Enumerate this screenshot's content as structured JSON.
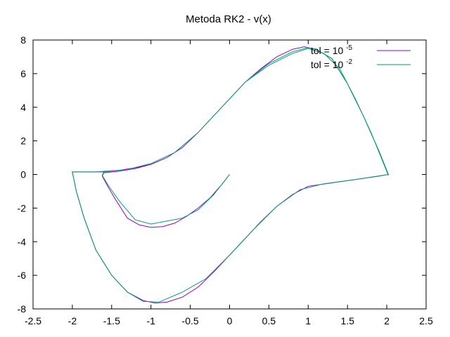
{
  "chart_data": {
    "type": "line",
    "title": "Metoda RK2 - v(x)",
    "xlim": [
      -2.5,
      2.5
    ],
    "ylim": [
      -8,
      8
    ],
    "xticks": [
      -2.5,
      -2,
      -1.5,
      -1,
      -0.5,
      0,
      0.5,
      1,
      1.5,
      2,
      2.5
    ],
    "yticks": [
      -8,
      -6,
      -4,
      -2,
      0,
      2,
      4,
      6,
      8
    ],
    "xtick_labels": [
      "-2.5",
      "-2",
      "-1.5",
      "-1",
      "-0.5",
      "0",
      "0.5",
      "1",
      "1.5",
      "2",
      "2.5"
    ],
    "ytick_labels": [
      "-8",
      "-6",
      "-4",
      "-2",
      "0",
      "2",
      "4",
      "6",
      "8"
    ],
    "grid": false,
    "legend_position": "top-right",
    "series": [
      {
        "label_prefix": "tol = 10",
        "label_exponent": "-5",
        "color": "#9400d3",
        "points": [
          [
            0,
            0
          ],
          [
            -0.1,
            -0.6
          ],
          [
            -0.25,
            -1.4
          ],
          [
            -0.4,
            -2.0
          ],
          [
            -0.55,
            -2.5
          ],
          [
            -0.7,
            -2.9
          ],
          [
            -0.85,
            -3.1
          ],
          [
            -1.0,
            -3.15
          ],
          [
            -1.15,
            -3.0
          ],
          [
            -1.3,
            -2.6
          ],
          [
            -1.45,
            -1.5
          ],
          [
            -1.55,
            -0.7
          ],
          [
            -1.62,
            -0.1
          ],
          [
            -1.6,
            0.1
          ],
          [
            -1.4,
            0.2
          ],
          [
            -1.2,
            0.35
          ],
          [
            -1.0,
            0.6
          ],
          [
            -0.8,
            1.0
          ],
          [
            -0.6,
            1.6
          ],
          [
            -0.4,
            2.5
          ],
          [
            -0.2,
            3.5
          ],
          [
            0,
            4.5
          ],
          [
            0.2,
            5.5
          ],
          [
            0.4,
            6.3
          ],
          [
            0.6,
            7.0
          ],
          [
            0.8,
            7.45
          ],
          [
            0.95,
            7.6
          ],
          [
            1.1,
            7.45
          ],
          [
            1.3,
            6.9
          ],
          [
            1.5,
            5.4
          ],
          [
            1.7,
            3.5
          ],
          [
            1.9,
            1.4
          ],
          [
            2.02,
            0.0
          ],
          [
            1.9,
            -0.1
          ],
          [
            1.6,
            -0.3
          ],
          [
            1.3,
            -0.5
          ],
          [
            1.0,
            -0.7
          ],
          [
            0.8,
            -1.2
          ],
          [
            0.6,
            -1.9
          ],
          [
            0.4,
            -2.8
          ],
          [
            0.2,
            -3.8
          ],
          [
            0,
            -4.8
          ],
          [
            -0.2,
            -5.8
          ],
          [
            -0.4,
            -6.7
          ],
          [
            -0.6,
            -7.3
          ],
          [
            -0.8,
            -7.6
          ],
          [
            -0.95,
            -7.65
          ],
          [
            -1.1,
            -7.5
          ],
          [
            -1.3,
            -7.0
          ],
          [
            -1.5,
            -6.0
          ],
          [
            -1.7,
            -4.5
          ],
          [
            -1.85,
            -2.6
          ],
          [
            -1.95,
            -1.0
          ],
          [
            -2.0,
            0.15
          ],
          [
            -1.7,
            0.15
          ],
          [
            -1.4,
            0.25
          ],
          [
            -1.2,
            0.4
          ],
          [
            -1.0,
            0.6
          ],
          [
            -0.8,
            1.0
          ],
          [
            -0.6,
            1.6
          ],
          [
            -0.4,
            2.5
          ],
          [
            -0.2,
            3.5
          ],
          [
            0,
            4.5
          ],
          [
            0.2,
            5.5
          ],
          [
            0.4,
            6.3
          ],
          [
            0.6,
            7.0
          ],
          [
            0.8,
            7.45
          ],
          [
            0.95,
            7.6
          ],
          [
            1.1,
            7.45
          ],
          [
            1.3,
            6.9
          ],
          [
            1.5,
            5.4
          ],
          [
            1.7,
            3.5
          ],
          [
            1.9,
            1.4
          ],
          [
            2.02,
            -0.05
          ]
        ]
      },
      {
        "label_prefix": "tol = 10",
        "label_exponent": "-2",
        "color": "#009e73",
        "points": [
          [
            0,
            0
          ],
          [
            -0.2,
            -1.2
          ],
          [
            -0.4,
            -2.1
          ],
          [
            -0.6,
            -2.6
          ],
          [
            -1.0,
            -2.95
          ],
          [
            -1.2,
            -2.7
          ],
          [
            -1.4,
            -1.6
          ],
          [
            -1.55,
            -0.6
          ],
          [
            -1.62,
            -0.05
          ],
          [
            -1.6,
            0.15
          ],
          [
            -1.3,
            0.3
          ],
          [
            -1.0,
            0.65
          ],
          [
            -0.7,
            1.3
          ],
          [
            -0.4,
            2.5
          ],
          [
            -0.1,
            4.0
          ],
          [
            0.2,
            5.5
          ],
          [
            0.5,
            6.6
          ],
          [
            0.8,
            7.3
          ],
          [
            1.0,
            7.55
          ],
          [
            1.1,
            7.45
          ],
          [
            1.3,
            6.9
          ],
          [
            1.5,
            5.4
          ],
          [
            1.7,
            3.5
          ],
          [
            1.9,
            1.4
          ],
          [
            2.02,
            0.0
          ],
          [
            1.6,
            -0.3
          ],
          [
            1.2,
            -0.55
          ],
          [
            0.9,
            -0.9
          ],
          [
            0.6,
            -1.9
          ],
          [
            0.3,
            -3.3
          ],
          [
            0,
            -4.8
          ],
          [
            -0.3,
            -6.2
          ],
          [
            -0.6,
            -7.0
          ],
          [
            -0.9,
            -7.6
          ],
          [
            -1.1,
            -7.55
          ],
          [
            -1.3,
            -7.0
          ],
          [
            -1.5,
            -6.0
          ],
          [
            -1.7,
            -4.5
          ],
          [
            -1.85,
            -2.6
          ],
          [
            -1.95,
            -1.0
          ],
          [
            -2.0,
            0.15
          ],
          [
            -1.6,
            0.15
          ],
          [
            -1.3,
            0.3
          ],
          [
            -1.0,
            0.65
          ],
          [
            -0.7,
            1.3
          ],
          [
            -0.4,
            2.5
          ],
          [
            -0.1,
            4.0
          ],
          [
            0.2,
            5.5
          ],
          [
            0.5,
            6.5
          ],
          [
            0.8,
            7.2
          ],
          [
            1.0,
            7.5
          ],
          [
            1.2,
            7.2
          ],
          [
            1.4,
            6.3
          ],
          [
            1.6,
            4.5
          ],
          [
            1.8,
            2.5
          ],
          [
            2.02,
            -0.05
          ]
        ]
      }
    ]
  }
}
